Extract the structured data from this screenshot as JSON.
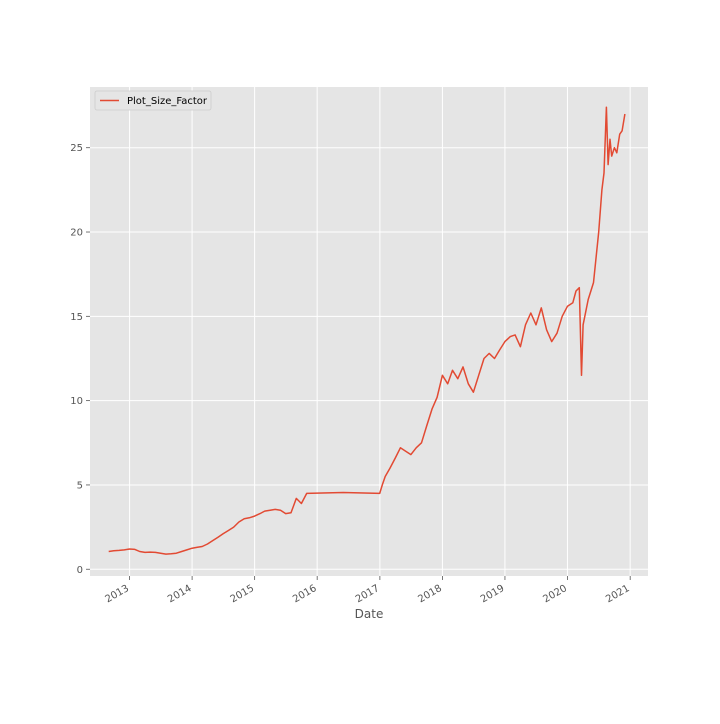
{
  "chart_data": {
    "type": "line",
    "title": "",
    "xlabel": "Date",
    "ylabel": "",
    "xlim": [
      "2012-05-15",
      "2021-04-15"
    ],
    "ylim": [
      -0.4,
      28.6
    ],
    "x_ticks": [
      "2013",
      "2014",
      "2015",
      "2016",
      "2017",
      "2018",
      "2019",
      "2020",
      "2021"
    ],
    "x_tick_dates": [
      "2013-01-01",
      "2014-01-01",
      "2015-01-01",
      "2016-01-01",
      "2017-01-01",
      "2018-01-01",
      "2019-01-01",
      "2020-01-01",
      "2021-01-01"
    ],
    "y_ticks": [
      0,
      5,
      10,
      15,
      20,
      25
    ],
    "grid": true,
    "legend_position": "upper-left",
    "colors": {
      "series": "#E24A33",
      "plot_background": "#E5E5E5",
      "grid": "#FFFFFF"
    },
    "series": [
      {
        "name": "Plot_Size_Factor",
        "x": [
          "2012-09-01",
          "2012-10-01",
          "2012-11-01",
          "2012-12-01",
          "2013-01-01",
          "2013-02-01",
          "2013-03-01",
          "2013-04-01",
          "2013-05-01",
          "2013-06-01",
          "2013-07-01",
          "2013-08-01",
          "2013-09-01",
          "2013-10-01",
          "2013-11-01",
          "2013-12-01",
          "2014-01-01",
          "2014-02-01",
          "2014-03-01",
          "2014-04-01",
          "2014-05-01",
          "2014-06-01",
          "2014-07-01",
          "2014-08-01",
          "2014-09-01",
          "2014-10-01",
          "2014-11-01",
          "2014-12-01",
          "2015-01-01",
          "2015-02-01",
          "2015-03-01",
          "2015-04-01",
          "2015-05-01",
          "2015-06-01",
          "2015-07-01",
          "2015-08-01",
          "2015-09-01",
          "2015-10-01",
          "2015-11-01",
          "2016-06-01",
          "2016-12-31",
          "2017-01-15",
          "2017-02-01",
          "2017-03-01",
          "2017-04-01",
          "2017-05-01",
          "2017-06-01",
          "2017-07-01",
          "2017-08-01",
          "2017-09-01",
          "2017-10-01",
          "2017-11-01",
          "2017-12-01",
          "2018-01-01",
          "2018-02-01",
          "2018-03-01",
          "2018-04-01",
          "2018-05-01",
          "2018-06-01",
          "2018-07-01",
          "2018-08-01",
          "2018-09-01",
          "2018-10-01",
          "2018-11-01",
          "2018-12-01",
          "2019-01-01",
          "2019-02-01",
          "2019-03-01",
          "2019-04-01",
          "2019-05-01",
          "2019-06-01",
          "2019-07-01",
          "2019-08-01",
          "2019-09-01",
          "2019-10-01",
          "2019-11-01",
          "2019-12-01",
          "2020-01-01",
          "2020-02-01",
          "2020-02-20",
          "2020-03-10",
          "2020-03-23",
          "2020-04-01",
          "2020-05-01",
          "2020-06-01",
          "2020-07-01",
          "2020-07-20",
          "2020-08-01",
          "2020-08-15",
          "2020-08-25",
          "2020-09-05",
          "2020-09-15",
          "2020-10-01",
          "2020-10-15",
          "2020-11-01",
          "2020-11-15",
          "2020-12-01"
        ],
        "values": [
          1.05,
          1.1,
          1.12,
          1.15,
          1.2,
          1.18,
          1.05,
          1.0,
          1.02,
          1.0,
          0.95,
          0.9,
          0.92,
          0.95,
          1.05,
          1.15,
          1.25,
          1.3,
          1.35,
          1.5,
          1.7,
          1.9,
          2.1,
          2.3,
          2.5,
          2.8,
          3.0,
          3.05,
          3.15,
          3.3,
          3.45,
          3.5,
          3.55,
          3.5,
          3.3,
          3.35,
          4.2,
          3.9,
          4.5,
          4.55,
          4.5,
          5.0,
          5.5,
          6.0,
          6.6,
          7.2,
          7.0,
          6.8,
          7.2,
          7.5,
          8.5,
          9.5,
          10.2,
          11.5,
          11.0,
          11.8,
          11.3,
          12.0,
          11.0,
          10.5,
          11.5,
          12.5,
          12.8,
          12.5,
          13.0,
          13.5,
          13.8,
          13.9,
          13.2,
          14.5,
          15.2,
          14.5,
          15.5,
          14.2,
          13.5,
          14.0,
          15.0,
          15.6,
          15.8,
          16.5,
          16.7,
          11.5,
          14.5,
          16.0,
          17.0,
          20.0,
          22.5,
          23.5,
          27.4,
          24.0,
          25.5,
          24.5,
          25.0,
          24.7,
          25.8,
          26.0,
          27.0
        ]
      }
    ]
  }
}
